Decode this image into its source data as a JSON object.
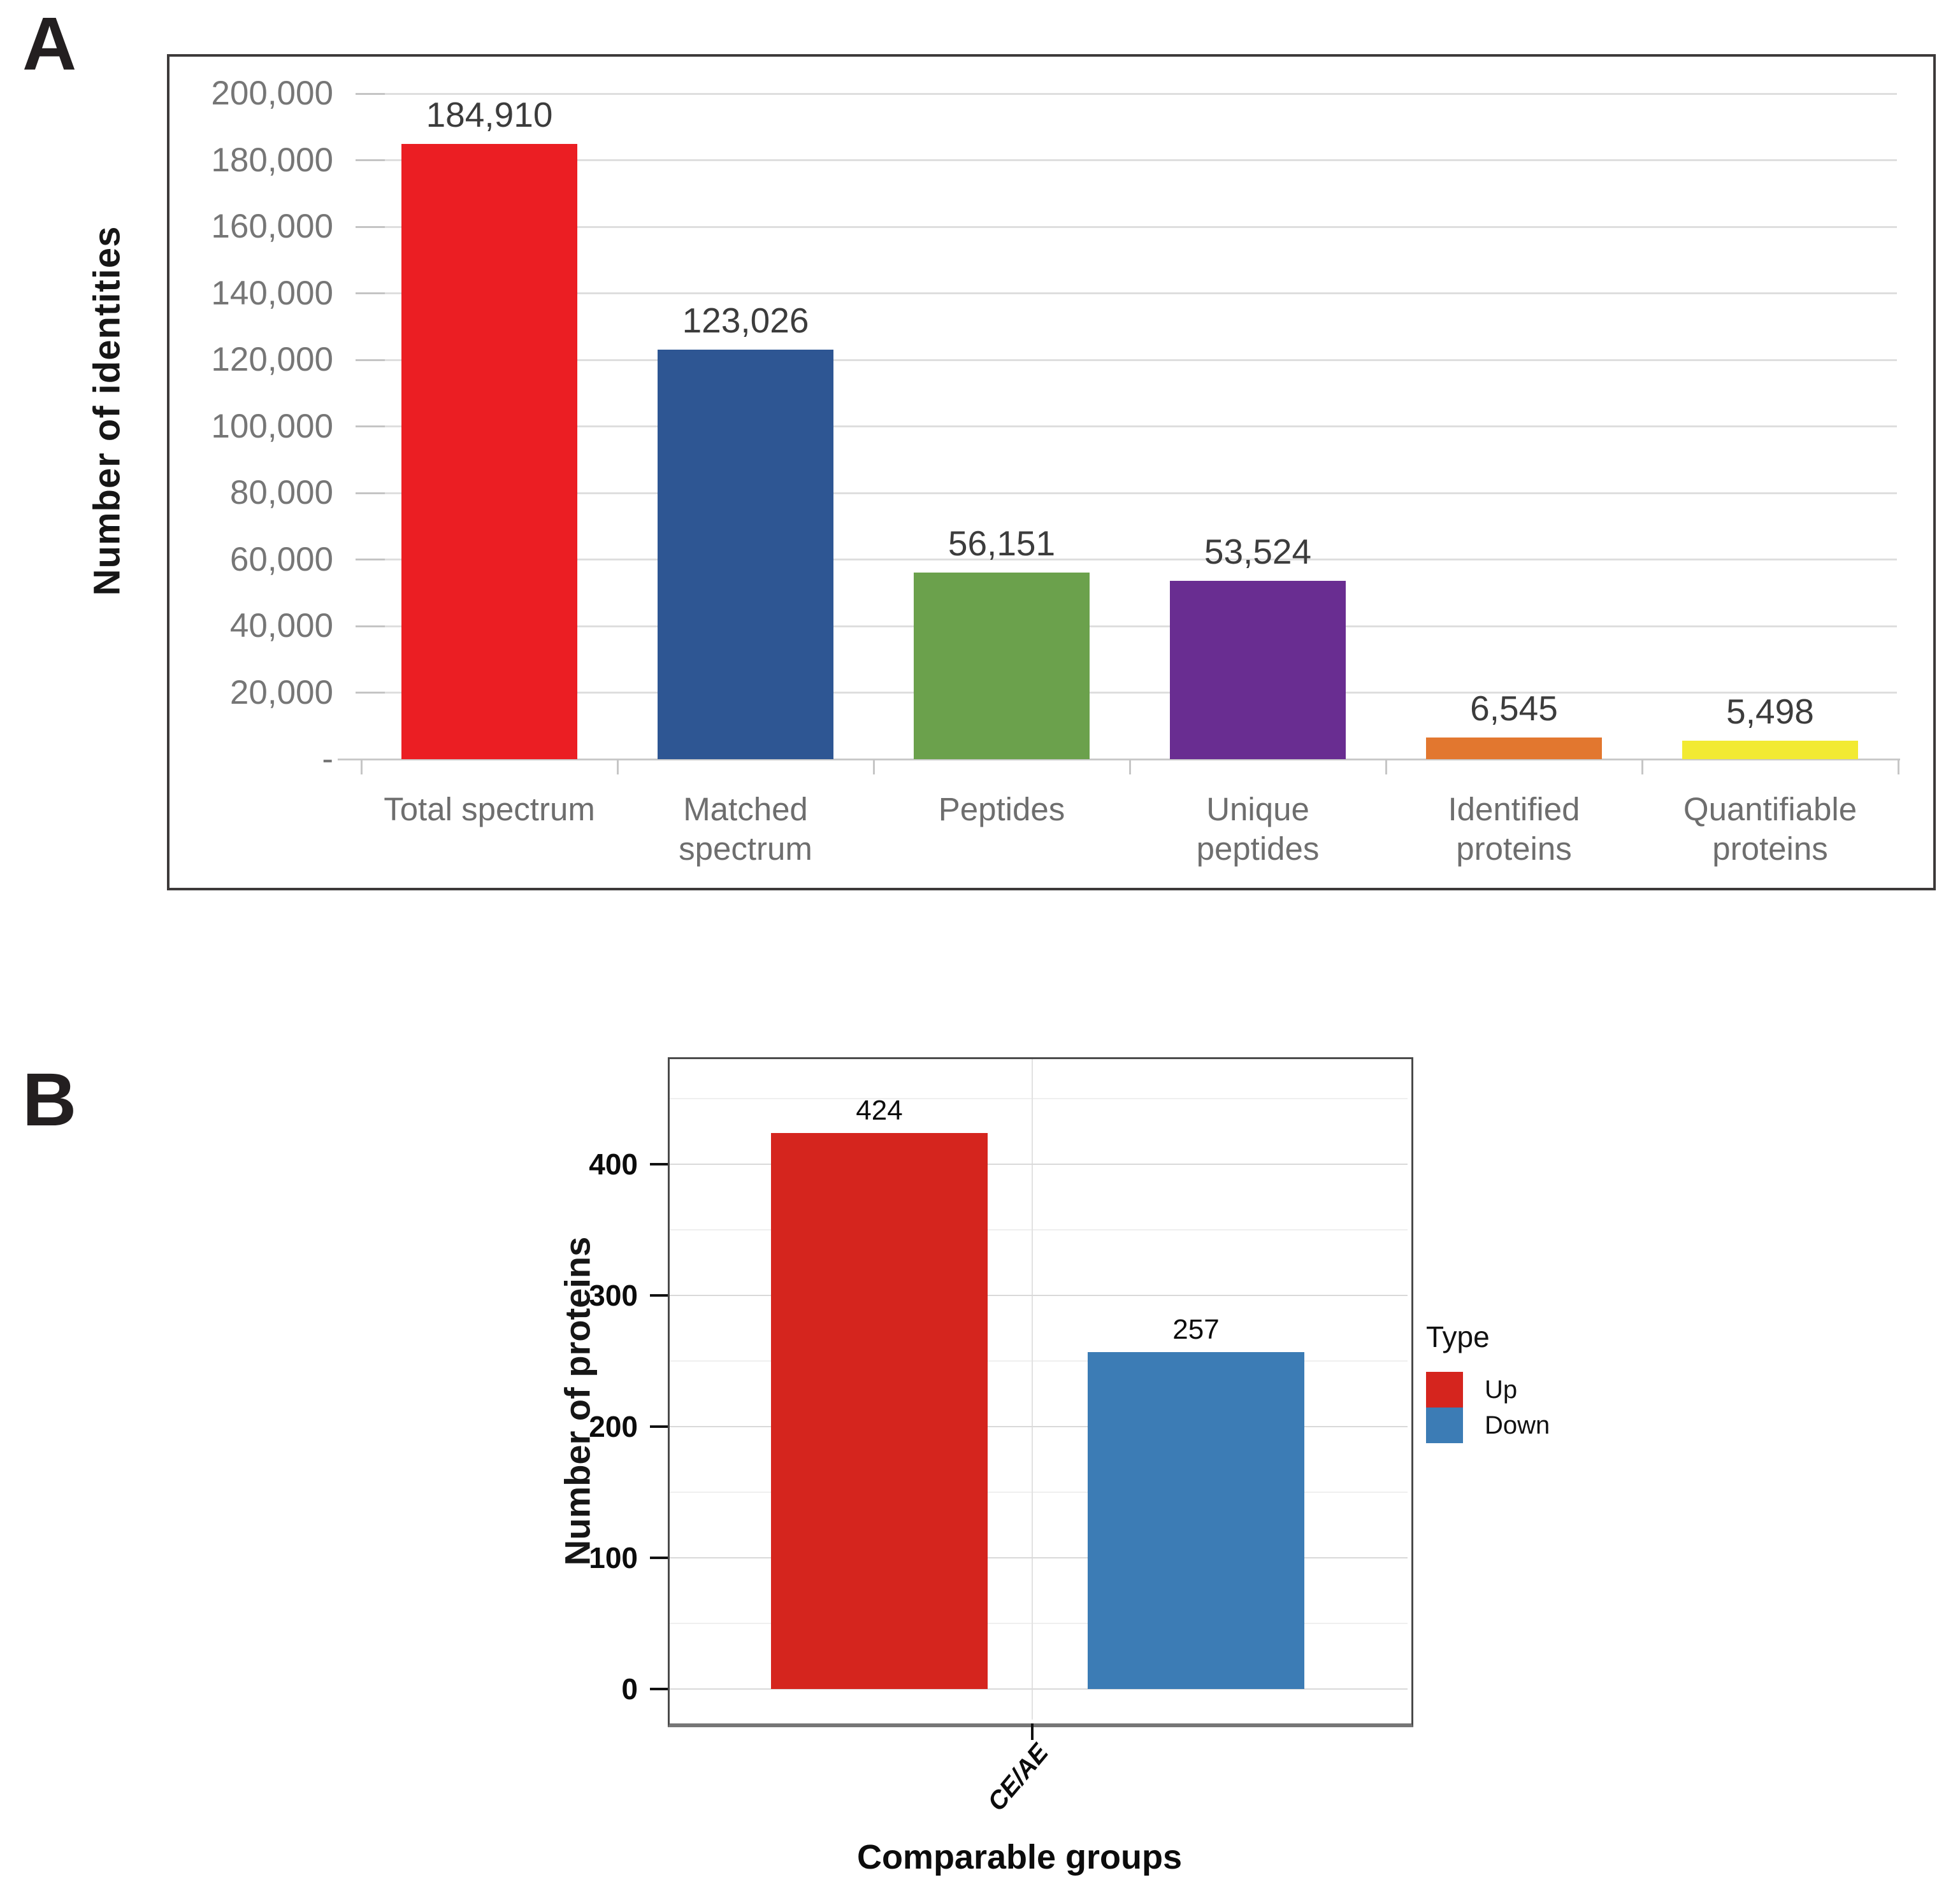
{
  "figure": {
    "panel_a_letter": "A",
    "panel_b_letter": "B"
  },
  "chart_data": [
    {
      "panel_label": "A",
      "type": "bar",
      "title": "",
      "xlabel": "",
      "ylabel": "Number of identities",
      "ylim": [
        0,
        200000
      ],
      "ytick_step": 20000,
      "ytick_labels": [
        "200,000",
        "180,000",
        "160,000",
        "140,000",
        "120,000",
        "100,000",
        "80,000",
        "60,000",
        "40,000",
        "20,000",
        "-"
      ],
      "categories": [
        "Total spectrum",
        "Matched spectrum",
        "Peptides",
        "Unique peptides",
        "Identified proteins",
        "Quantifiable proteins"
      ],
      "category_lines": [
        [
          "Total spectrum"
        ],
        [
          "Matched",
          "spectrum"
        ],
        [
          "Peptides"
        ],
        [
          "Unique",
          "peptides"
        ],
        [
          "Identified",
          "proteins"
        ],
        [
          "Quantifiable",
          "proteins"
        ]
      ],
      "values": [
        184910,
        123026,
        56151,
        53524,
        6545,
        5498
      ],
      "value_labels": [
        "184,910",
        "123,026",
        "56,151",
        "53,524",
        "6,545",
        "5,498"
      ],
      "bar_colors": [
        "#EB1E23",
        "#2E5693",
        "#6BA14C",
        "#692D91",
        "#E2772F",
        "#F2EA33"
      ],
      "grid": true,
      "legend_position": "none"
    },
    {
      "panel_label": "B",
      "type": "bar",
      "title": "",
      "xlabel": "Comparable groups",
      "ylabel": "Number of proteins",
      "ylim": [
        0,
        470
      ],
      "ytick_step": 100,
      "ytick_labels": [
        "0",
        "100",
        "200",
        "300",
        "400"
      ],
      "categories": [
        "CE/AE"
      ],
      "series": [
        {
          "name": "Up",
          "values": [
            424
          ],
          "value_labels": [
            "424"
          ],
          "color": "#D5251E"
        },
        {
          "name": "Down",
          "values": [
            257
          ],
          "value_labels": [
            "257"
          ],
          "color": "#3C7CB5"
        }
      ],
      "legend_title": "Type",
      "grid": true,
      "legend_position": "right"
    }
  ]
}
